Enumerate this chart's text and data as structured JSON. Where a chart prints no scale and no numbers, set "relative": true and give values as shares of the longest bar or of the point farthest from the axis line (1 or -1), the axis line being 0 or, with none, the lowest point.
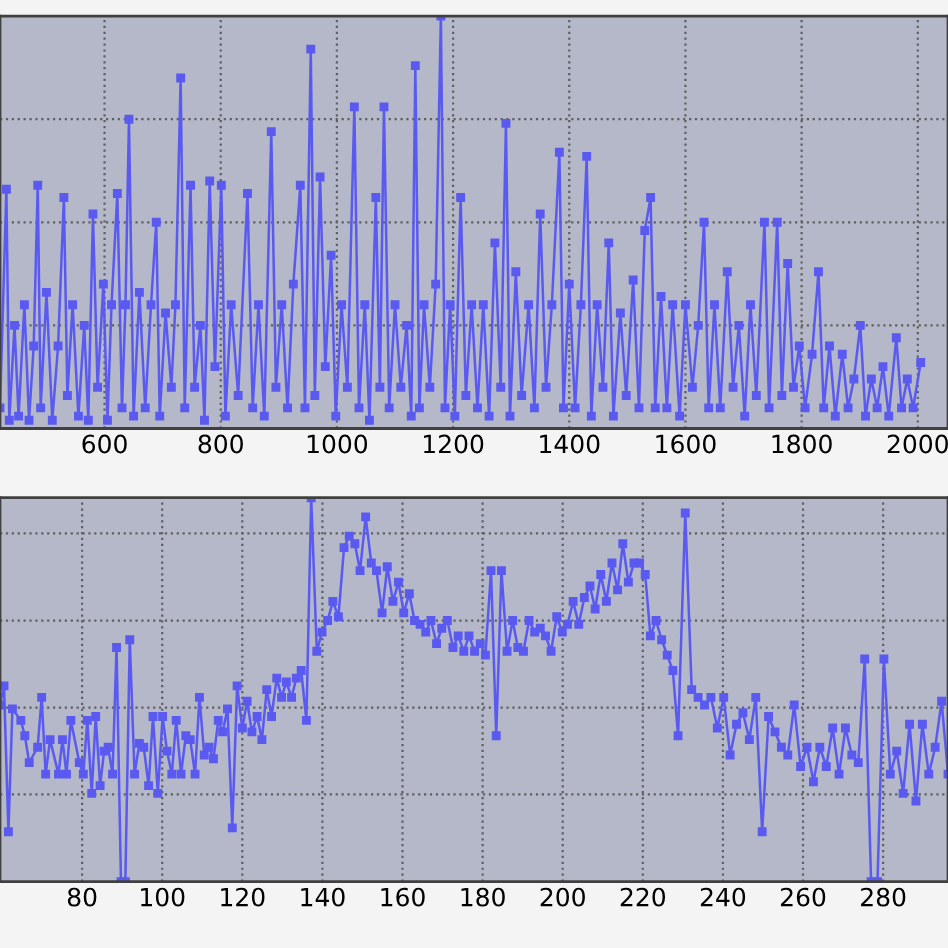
{
  "chart_data": [
    {
      "type": "line",
      "relative": true,
      "grid": true,
      "tick_labels": "x",
      "marker": "square",
      "line_style": "solid",
      "xlim": [
        420,
        2052
      ],
      "xticks": [
        600,
        800,
        1000,
        1200,
        1400,
        1600,
        1800,
        2000
      ],
      "series": [
        {
          "color": "#5a5af0",
          "x": [
            420,
            431,
            436,
            445,
            452,
            462,
            470,
            478,
            485,
            490,
            500,
            510,
            520,
            530,
            536,
            545,
            555,
            565,
            572,
            580,
            588,
            598,
            605,
            612,
            622,
            630,
            636,
            642,
            650,
            660,
            670,
            680,
            689,
            695,
            705,
            715,
            722,
            731,
            738,
            748,
            755,
            765,
            772,
            781,
            790,
            801,
            808,
            818,
            830,
            846,
            855,
            865,
            875,
            887,
            895,
            905,
            915,
            925,
            937,
            945,
            955,
            962,
            971,
            980,
            990,
            998,
            1008,
            1018,
            1030,
            1038,
            1048,
            1056,
            1067,
            1074,
            1081,
            1090,
            1100,
            1110,
            1120,
            1128,
            1135,
            1142,
            1150,
            1160,
            1170,
            1179,
            1186,
            1195,
            1203,
            1213,
            1222,
            1232,
            1242,
            1252,
            1262,
            1272,
            1282,
            1291,
            1298,
            1308,
            1318,
            1330,
            1340,
            1350,
            1360,
            1370,
            1383,
            1390,
            1400,
            1410,
            1420,
            1430,
            1438,
            1448,
            1458,
            1468,
            1476,
            1488,
            1498,
            1510,
            1520,
            1530,
            1540,
            1548,
            1558,
            1568,
            1578,
            1590,
            1600,
            1612,
            1622,
            1632,
            1640,
            1650,
            1660,
            1672,
            1682,
            1692,
            1702,
            1712,
            1722,
            1736,
            1744,
            1758,
            1766,
            1776,
            1786,
            1796,
            1806,
            1818,
            1829,
            1838,
            1848,
            1858,
            1870,
            1880,
            1890,
            1901,
            1910,
            1920,
            1930,
            1940,
            1950,
            1963,
            1972,
            1982,
            1992,
            2005
          ],
          "values": [
            0.05,
            0.58,
            0.02,
            0.25,
            0.03,
            0.3,
            0.02,
            0.2,
            0.59,
            0.05,
            0.33,
            0.02,
            0.2,
            0.56,
            0.08,
            0.3,
            0.03,
            0.25,
            0.02,
            0.52,
            0.1,
            0.35,
            0.02,
            0.3,
            0.57,
            0.05,
            0.3,
            0.75,
            0.03,
            0.33,
            0.05,
            0.3,
            0.5,
            0.03,
            0.28,
            0.1,
            0.3,
            0.85,
            0.05,
            0.59,
            0.1,
            0.25,
            0.02,
            0.6,
            0.15,
            0.59,
            0.03,
            0.3,
            0.08,
            0.57,
            0.05,
            0.3,
            0.03,
            0.72,
            0.1,
            0.3,
            0.05,
            0.35,
            0.59,
            0.05,
            0.92,
            0.08,
            0.61,
            0.15,
            0.42,
            0.03,
            0.3,
            0.1,
            0.78,
            0.05,
            0.3,
            0.02,
            0.56,
            0.1,
            0.78,
            0.05,
            0.3,
            0.1,
            0.25,
            0.03,
            0.88,
            0.05,
            0.3,
            0.1,
            0.35,
            1.0,
            0.05,
            0.3,
            0.03,
            0.56,
            0.08,
            0.3,
            0.05,
            0.3,
            0.03,
            0.45,
            0.1,
            0.74,
            0.03,
            0.38,
            0.08,
            0.3,
            0.05,
            0.52,
            0.1,
            0.3,
            0.67,
            0.05,
            0.35,
            0.05,
            0.3,
            0.66,
            0.03,
            0.3,
            0.1,
            0.45,
            0.03,
            0.28,
            0.08,
            0.36,
            0.05,
            0.48,
            0.56,
            0.05,
            0.32,
            0.05,
            0.3,
            0.03,
            0.3,
            0.1,
            0.25,
            0.5,
            0.05,
            0.3,
            0.05,
            0.38,
            0.1,
            0.25,
            0.03,
            0.3,
            0.08,
            0.5,
            0.05,
            0.5,
            0.08,
            0.4,
            0.1,
            0.2,
            0.05,
            0.18,
            0.38,
            0.05,
            0.2,
            0.03,
            0.18,
            0.05,
            0.12,
            0.25,
            0.03,
            0.12,
            0.05,
            0.15,
            0.03,
            0.22,
            0.05,
            0.12,
            0.05,
            0.16
          ]
        }
      ]
    },
    {
      "type": "line",
      "relative": true,
      "grid": true,
      "tick_labels": "x",
      "marker": "square",
      "line_style": "solid",
      "xlim": [
        59.5,
        296.2
      ],
      "xticks": [
        80,
        100,
        120,
        140,
        160,
        180,
        200,
        220,
        240,
        260,
        280
      ],
      "series": [
        {
          "color": "#5a5af0",
          "x": [
            59.5,
            60.5,
            61.6,
            62.6,
            64.7,
            65.7,
            66.8,
            68.9,
            69.9,
            70.9,
            72.0,
            74.1,
            75.1,
            76.1,
            77.2,
            79.3,
            80.3,
            81.3,
            82.4,
            83.4,
            84.5,
            85.5,
            86.5,
            87.6,
            88.6,
            89.7,
            90.8,
            91.9,
            93.1,
            94.3,
            95.4,
            96.6,
            97.7,
            98.9,
            100.1,
            101.2,
            102.4,
            103.5,
            104.7,
            105.9,
            107.0,
            108.2,
            109.3,
            110.5,
            111.7,
            112.8,
            114.0,
            115.1,
            116.3,
            117.5,
            118.7,
            120.0,
            121.2,
            122.4,
            123.7,
            124.9,
            126.1,
            127.3,
            128.6,
            129.8,
            131.0,
            132.3,
            133.5,
            134.7,
            136.0,
            137.2,
            138.6,
            139.9,
            141.3,
            142.6,
            144.0,
            145.4,
            146.7,
            148.1,
            149.4,
            150.8,
            152.2,
            153.5,
            154.9,
            156.2,
            157.6,
            159.0,
            160.3,
            161.7,
            163.0,
            164.4,
            165.8,
            167.1,
            168.5,
            169.8,
            171.2,
            172.6,
            173.9,
            175.3,
            176.6,
            178.0,
            179.4,
            180.7,
            182.1,
            183.4,
            184.7,
            186.1,
            187.5,
            188.8,
            190.2,
            191.6,
            193.0,
            194.4,
            195.7,
            197.1,
            198.5,
            199.9,
            201.2,
            202.6,
            204.0,
            205.4,
            206.8,
            208.1,
            209.5,
            210.9,
            212.3,
            213.7,
            215.0,
            216.4,
            217.8,
            219.2,
            220.6,
            221.9,
            223.3,
            224.7,
            226.1,
            227.5,
            228.8,
            230.6,
            232.2,
            233.8,
            235.4,
            237.0,
            238.6,
            240.2,
            241.8,
            243.4,
            245.0,
            246.6,
            248.2,
            249.8,
            251.4,
            253.0,
            254.6,
            256.2,
            257.8,
            259.4,
            261.0,
            262.6,
            264.2,
            265.8,
            267.4,
            269.0,
            270.6,
            272.2,
            273.8,
            275.4,
            277.0,
            278.6,
            280.2,
            281.8,
            283.4,
            285.0,
            286.6,
            288.2,
            289.8,
            291.4,
            293.0,
            294.6,
            296.2
          ],
          "values": [
            0.46,
            0.51,
            0.13,
            0.45,
            0.42,
            0.38,
            0.31,
            0.35,
            0.48,
            0.28,
            0.37,
            0.28,
            0.37,
            0.28,
            0.42,
            0.31,
            0.28,
            0.42,
            0.23,
            0.43,
            0.25,
            0.34,
            0.35,
            0.28,
            0.61,
            0.0,
            0.0,
            0.63,
            0.28,
            0.36,
            0.35,
            0.25,
            0.43,
            0.23,
            0.43,
            0.34,
            0.28,
            0.42,
            0.28,
            0.38,
            0.37,
            0.28,
            0.48,
            0.33,
            0.35,
            0.32,
            0.42,
            0.39,
            0.45,
            0.14,
            0.51,
            0.4,
            0.47,
            0.39,
            0.43,
            0.37,
            0.5,
            0.43,
            0.53,
            0.48,
            0.52,
            0.48,
            0.53,
            0.55,
            0.42,
            1.0,
            0.6,
            0.65,
            0.68,
            0.73,
            0.69,
            0.87,
            0.9,
            0.88,
            0.81,
            0.95,
            0.83,
            0.81,
            0.7,
            0.82,
            0.73,
            0.78,
            0.7,
            0.75,
            0.68,
            0.67,
            0.65,
            0.68,
            0.62,
            0.66,
            0.68,
            0.61,
            0.64,
            0.6,
            0.64,
            0.6,
            0.62,
            0.59,
            0.81,
            0.38,
            0.81,
            0.6,
            0.68,
            0.61,
            0.6,
            0.68,
            0.65,
            0.66,
            0.64,
            0.6,
            0.69,
            0.65,
            0.67,
            0.73,
            0.67,
            0.74,
            0.77,
            0.71,
            0.8,
            0.73,
            0.83,
            0.76,
            0.88,
            0.78,
            0.83,
            0.83,
            0.8,
            0.64,
            0.68,
            0.63,
            0.59,
            0.55,
            0.38,
            0.96,
            0.5,
            0.48,
            0.46,
            0.48,
            0.4,
            0.48,
            0.33,
            0.41,
            0.44,
            0.37,
            0.48,
            0.13,
            0.43,
            0.39,
            0.35,
            0.33,
            0.46,
            0.3,
            0.35,
            0.26,
            0.35,
            0.3,
            0.4,
            0.28,
            0.4,
            0.33,
            0.31,
            0.58,
            0.0,
            0.0,
            0.58,
            0.28,
            0.34,
            0.23,
            0.41,
            0.21,
            0.41,
            0.28,
            0.35,
            0.47,
            0.28
          ]
        }
      ]
    }
  ]
}
